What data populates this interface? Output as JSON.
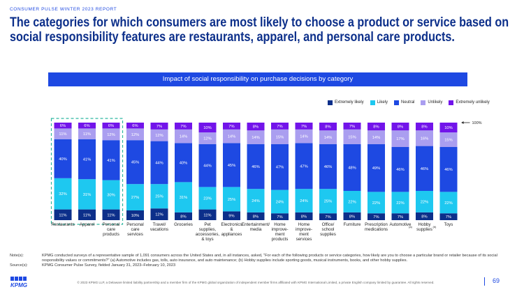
{
  "report_label": "CONSUMER PULSE WINTER 2023 REPORT",
  "headline": {
    "line1": "The categories for which consumers are most likely to choose a product or service based on",
    "line2": "social responsibility features are restaurants, apparel, and personal care products."
  },
  "chart_data": {
    "type": "bar",
    "stacked": true,
    "orientation": "vertical",
    "title": "Impact of social responsibility on purchase decisions by category",
    "ylim": [
      0,
      100
    ],
    "reference_line_label": "100%",
    "categories": [
      [
        "Restaurants"
      ],
      [
        "Apparel"
      ],
      [
        "Personal",
        "care",
        "products"
      ],
      [
        "Personal",
        "care",
        "services"
      ],
      [
        "Travel/",
        "vacations"
      ],
      [
        "Groceries"
      ],
      [
        "Pet",
        "supplies,",
        "accessories,",
        "& toys"
      ],
      [
        "Electronics",
        "&",
        "appliances"
      ],
      [
        "Entertainment/",
        "media"
      ],
      [
        "Home",
        "improve-",
        "ment",
        "products"
      ],
      [
        "Home",
        "improve-",
        "ment",
        "services"
      ],
      [
        "Office/",
        "school",
        "supplies"
      ],
      [
        "Furniture"
      ],
      [
        "Prescription",
        "medications"
      ],
      [
        "Automotive"
      ],
      [
        "Hobby",
        "supplies"
      ],
      [
        "Toys"
      ]
    ],
    "category_superscripts": [
      "",
      "",
      "",
      "",
      "",
      "",
      "",
      "",
      "",
      "",
      "",
      "",
      "",
      "",
      "(a)",
      "(b)",
      ""
    ],
    "series": [
      {
        "name": "Extremely likely",
        "color": "#0c2f8a",
        "values": [
          11,
          11,
          11,
          10,
          12,
          8,
          11,
          9,
          8,
          7,
          8,
          7,
          8,
          7,
          7,
          8,
          7
        ]
      },
      {
        "name": "Likely",
        "color": "#1ec8f0",
        "values": [
          32,
          31,
          30,
          27,
          25,
          31,
          23,
          25,
          24,
          24,
          24,
          25,
          22,
          22,
          22,
          22,
          22
        ]
      },
      {
        "name": "Neutral",
        "color": "#1e49e2",
        "values": [
          40,
          41,
          41,
          45,
          44,
          40,
          44,
          45,
          46,
          47,
          47,
          46,
          48,
          49,
          46,
          46,
          46
        ]
      },
      {
        "name": "Unlikely",
        "color": "#aa9ef0",
        "values": [
          11,
          11,
          12,
          12,
          12,
          14,
          12,
          14,
          14,
          15,
          14,
          14,
          15,
          14,
          17,
          16,
          15
        ]
      },
      {
        "name": "Extremely unlikely",
        "color": "#7214ea",
        "values": [
          6,
          6,
          6,
          6,
          7,
          7,
          10,
          7,
          8,
          7,
          7,
          8,
          7,
          8,
          8,
          8,
          10
        ]
      }
    ],
    "highlighted_categories": [
      0,
      1,
      2
    ],
    "highlight_color": "#2eb8a0"
  },
  "notes": {
    "notes_key": "Note(s):",
    "notes_text": "KPMG conducted surveys of a representative sample of 1,091 consumers across the United States and, in all instances, asked, \"For each of the following products or service categories, how likely are you to choose a particular brand or retailer because of its social responsibility values or commitments?\" (a) Automotive includes gas, tolls, auto insurance, and auto maintenance; (b) Hobby supplies include sporting goods, musical instruments, books, and other hobby supplies.",
    "source_key": "Source(s):",
    "source_text": "KPMG Consumer Pulse Survey, fielded January 31, 2023–February 10, 2023"
  },
  "footer": {
    "logo_text": "KPMG",
    "copyright": "© 2023 KPMG LLP, a Delaware limited liability partnership and a member firm of the KPMG global organization of independent member firms affiliated with KPMG International Limited, a private English company limited by guarantee. All rights reserved.",
    "page_number": "69"
  },
  "colors": {
    "brand_blue": "#1e49e2",
    "dark_blue": "#0c2f8a"
  }
}
